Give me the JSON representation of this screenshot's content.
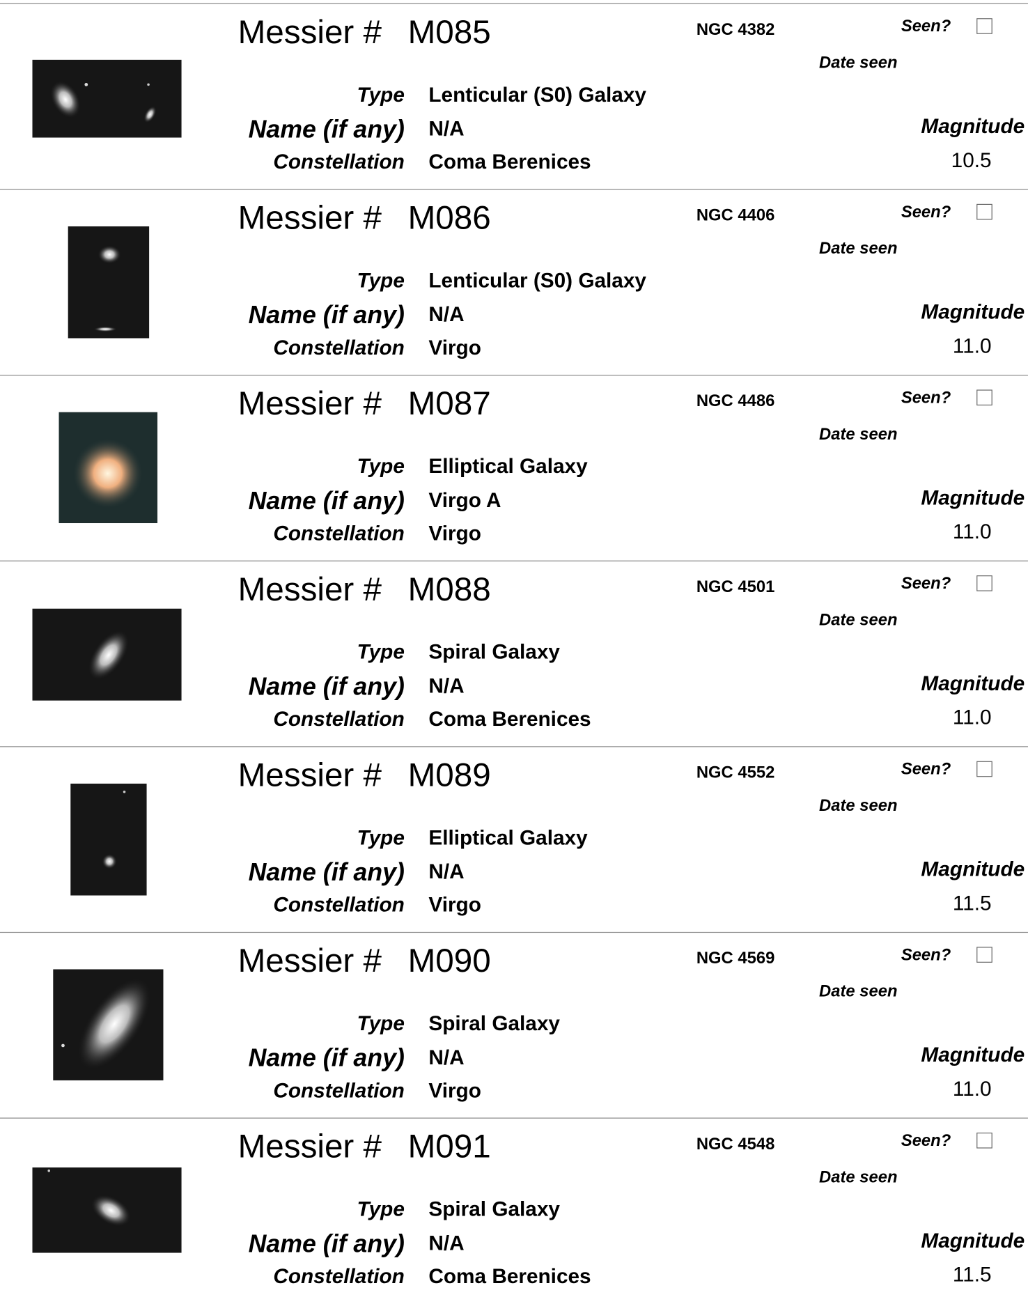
{
  "labels": {
    "messier": "Messier #",
    "type": "Type",
    "name": "Name (if any)",
    "constellation": "Constellation",
    "seen": "Seen?",
    "date_seen": "Date seen",
    "magnitude": "Magnitude"
  },
  "entries": [
    {
      "messier": "M085",
      "ngc": "NGC 4382",
      "type": "Lenticular (S0) Galaxy",
      "name": "N/A",
      "constellation": "Coma Berenices",
      "magnitude": "10.5"
    },
    {
      "messier": "M086",
      "ngc": "NGC 4406",
      "type": "Lenticular (S0) Galaxy",
      "name": "N/A",
      "constellation": "Virgo",
      "magnitude": "11.0"
    },
    {
      "messier": "M087",
      "ngc": "NGC 4486",
      "type": "Elliptical Galaxy",
      "name": "Virgo A",
      "constellation": "Virgo",
      "magnitude": "11.0"
    },
    {
      "messier": "M088",
      "ngc": "NGC 4501",
      "type": "Spiral Galaxy",
      "name": "N/A",
      "constellation": "Coma Berenices",
      "magnitude": "11.0"
    },
    {
      "messier": "M089",
      "ngc": "NGC 4552",
      "type": "Elliptical Galaxy",
      "name": "N/A",
      "constellation": "Virgo",
      "magnitude": "11.5"
    },
    {
      "messier": "M090",
      "ngc": "NGC 4569",
      "type": "Spiral Galaxy",
      "name": "N/A",
      "constellation": "Virgo",
      "magnitude": "11.0"
    },
    {
      "messier": "M091",
      "ngc": "NGC 4548",
      "type": "Spiral Galaxy",
      "name": "N/A",
      "constellation": "Coma Berenices",
      "magnitude": "11.5"
    }
  ]
}
